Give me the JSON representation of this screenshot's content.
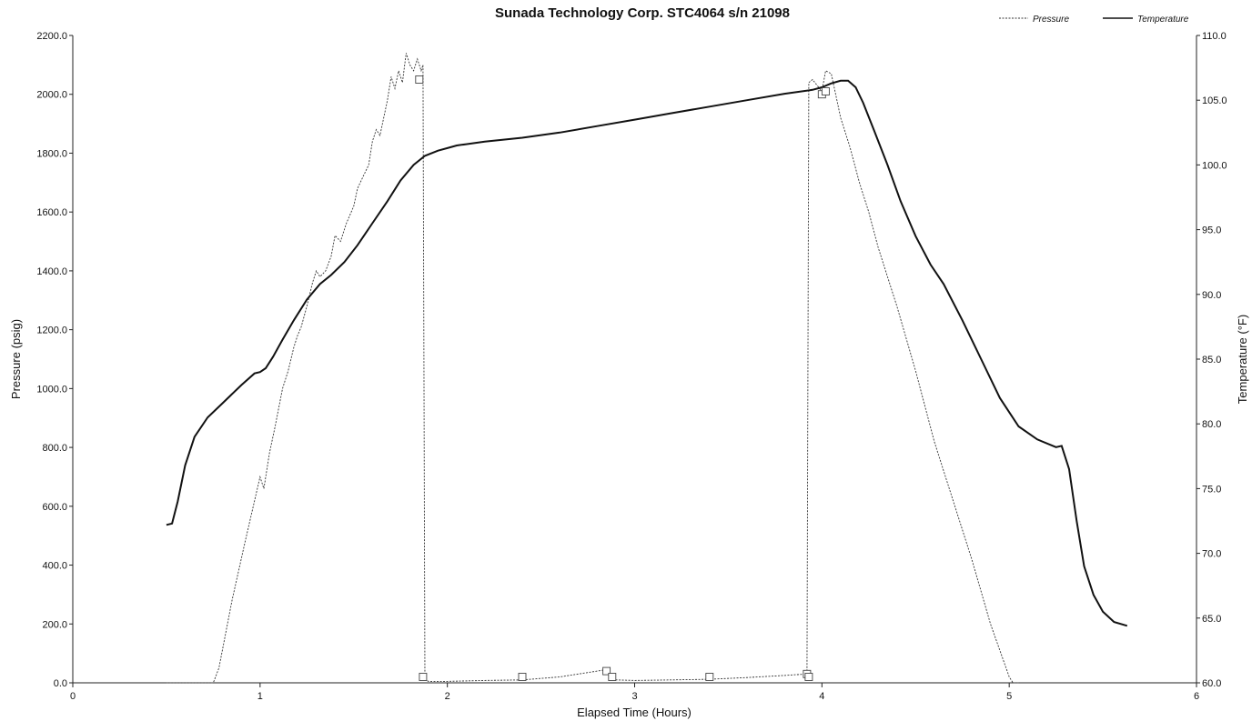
{
  "chart_data": {
    "type": "line",
    "title": "Sunada Technology Corp. STC4064 s/n 21098",
    "xlabel": "Elapsed Time (Hours)",
    "ylabel": "Pressure (psig)",
    "y2label": "Temperature (°F)",
    "xlim": [
      0,
      6
    ],
    "ylim": [
      0,
      2200
    ],
    "y2lim": [
      60,
      110
    ],
    "x_ticks": [
      0,
      1,
      2,
      3,
      4,
      5,
      6
    ],
    "y_ticks": [
      "0.0",
      "200.0",
      "400.0",
      "600.0",
      "800.0",
      "1000.0",
      "1200.0",
      "1400.0",
      "1600.0",
      "1800.0",
      "2000.0",
      "2200.0"
    ],
    "y2_ticks": [
      "60.0",
      "65.0",
      "70.0",
      "75.0",
      "80.0",
      "85.0",
      "90.0",
      "95.0",
      "100.0",
      "105.0",
      "110.0"
    ],
    "legend_position": "top-right",
    "series": [
      {
        "name": "Pressure",
        "axis": "left",
        "style": "dashed",
        "color": "#333333",
        "x": [
          0.5,
          0.75,
          0.78,
          0.85,
          0.92,
          1.0,
          1.02,
          1.05,
          1.08,
          1.12,
          1.15,
          1.18,
          1.2,
          1.22,
          1.25,
          1.28,
          1.3,
          1.32,
          1.35,
          1.38,
          1.4,
          1.43,
          1.46,
          1.5,
          1.52,
          1.55,
          1.58,
          1.6,
          1.62,
          1.64,
          1.66,
          1.68,
          1.7,
          1.72,
          1.74,
          1.76,
          1.78,
          1.8,
          1.82,
          1.84,
          1.86,
          1.87,
          1.88,
          1.9,
          2.0,
          2.2,
          2.4,
          2.6,
          2.8,
          2.85,
          2.88,
          2.9,
          3.0,
          3.2,
          3.4,
          3.6,
          3.8,
          3.92,
          3.93,
          3.95,
          4.0,
          4.02,
          4.05,
          4.08,
          4.1,
          4.15,
          4.2,
          4.25,
          4.3,
          4.4,
          4.5,
          4.6,
          4.7,
          4.8,
          4.9,
          5.0,
          5.02,
          5.05
        ],
        "y": [
          0,
          0,
          50,
          280,
          480,
          700,
          660,
          780,
          870,
          1000,
          1060,
          1140,
          1180,
          1210,
          1280,
          1360,
          1400,
          1380,
          1400,
          1450,
          1520,
          1500,
          1560,
          1620,
          1680,
          1720,
          1760,
          1840,
          1880,
          1860,
          1920,
          1980,
          2060,
          2020,
          2080,
          2040,
          2140,
          2100,
          2080,
          2120,
          2080,
          2100,
          10,
          5,
          5,
          8,
          10,
          20,
          40,
          45,
          15,
          10,
          8,
          10,
          12,
          18,
          25,
          30,
          2040,
          2050,
          2010,
          2080,
          2070,
          1980,
          1920,
          1820,
          1700,
          1600,
          1480,
          1280,
          1060,
          820,
          620,
          420,
          200,
          20,
          0,
          0
        ]
      },
      {
        "name": "Temperature",
        "axis": "right",
        "style": "solid",
        "color": "#111111",
        "x": [
          0.5,
          0.53,
          0.56,
          0.6,
          0.65,
          0.72,
          0.8,
          0.9,
          0.97,
          1.0,
          1.03,
          1.07,
          1.12,
          1.18,
          1.25,
          1.32,
          1.38,
          1.45,
          1.52,
          1.6,
          1.68,
          1.75,
          1.82,
          1.88,
          1.95,
          2.0,
          2.05,
          2.1,
          2.2,
          2.4,
          2.6,
          2.8,
          3.0,
          3.2,
          3.4,
          3.6,
          3.8,
          3.95,
          4.0,
          4.05,
          4.1,
          4.14,
          4.18,
          4.22,
          4.28,
          4.35,
          4.42,
          4.5,
          4.58,
          4.65,
          4.75,
          4.85,
          4.95,
          5.05,
          5.15,
          5.25,
          5.28,
          5.32,
          5.36,
          5.4,
          5.45,
          5.5,
          5.56,
          5.63
        ],
        "y": [
          72.2,
          72.3,
          74.0,
          76.8,
          79.0,
          80.5,
          81.6,
          83.0,
          83.9,
          84.0,
          84.3,
          85.2,
          86.5,
          88.0,
          89.6,
          90.8,
          91.5,
          92.5,
          93.8,
          95.5,
          97.2,
          98.8,
          100.0,
          100.7,
          101.1,
          101.3,
          101.5,
          101.6,
          101.8,
          102.1,
          102.5,
          103.0,
          103.5,
          104.0,
          104.5,
          105.0,
          105.5,
          105.8,
          106.0,
          106.3,
          106.5,
          106.5,
          106.0,
          104.8,
          102.6,
          100.0,
          97.2,
          94.5,
          92.3,
          90.8,
          88.0,
          85.0,
          82.0,
          79.8,
          78.8,
          78.2,
          78.3,
          76.5,
          72.5,
          69.0,
          66.8,
          65.5,
          64.7,
          64.4
        ]
      }
    ],
    "markers": {
      "series": "Pressure",
      "shape": "square",
      "x": [
        1.85,
        1.87,
        2.4,
        2.85,
        2.88,
        3.4,
        3.92,
        3.93,
        4.0,
        4.02
      ],
      "y": [
        2050,
        20,
        20,
        40,
        20,
        20,
        30,
        20,
        2000,
        2010
      ]
    }
  }
}
